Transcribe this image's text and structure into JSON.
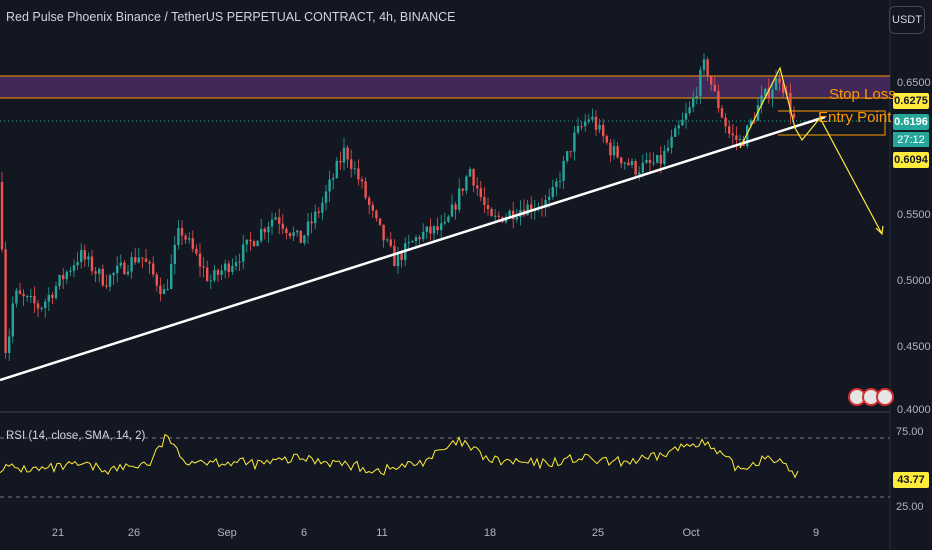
{
  "header": {
    "title": "Red Pulse Phoenix Binance / TetherUS PERPETUAL CONTRACT, 4h, BINANCE",
    "currency_button": "USDT"
  },
  "price_scale": {
    "ticks": [
      "0.6500",
      "0.5500",
      "0.5000",
      "0.4500",
      "0.4000"
    ],
    "stop_loss_tag": "0.6275",
    "current_price_tag": "0.6196",
    "countdown": "27:12",
    "entry_tag": "0.6094"
  },
  "annotations": {
    "stop_loss": "Stop Loss",
    "entry_point": "Entry Point"
  },
  "rsi": {
    "label": "RSI (14, close, SMA, 14, 2)",
    "value_tag": "43.77",
    "upper_band": "75.00",
    "lower_band": "25.00"
  },
  "time_axis": {
    "ticks": [
      "21",
      "26",
      "Sep",
      "6",
      "11",
      "18",
      "25",
      "Oct",
      "9"
    ]
  },
  "colors": {
    "background": "#131722",
    "up": "#26a69a",
    "down": "#ef5350",
    "zone": "#4a2b63",
    "stop_line": "#ff9800",
    "trendline": "#ffffff",
    "rsi_line": "#ffeb3b",
    "projection": "#ffeb3b"
  },
  "chart_data": {
    "type": "candlestick",
    "timeframe": "4h",
    "y_axis": {
      "min": 0.39,
      "max": 0.68
    },
    "anchors": [
      [
        0,
        0.575
      ],
      [
        6,
        0.44
      ],
      [
        14,
        0.49
      ],
      [
        40,
        0.48
      ],
      [
        80,
        0.52
      ],
      [
        105,
        0.5
      ],
      [
        140,
        0.52
      ],
      [
        165,
        0.49
      ],
      [
        180,
        0.54
      ],
      [
        210,
        0.5
      ],
      [
        240,
        0.52
      ],
      [
        275,
        0.55
      ],
      [
        300,
        0.53
      ],
      [
        320,
        0.555
      ],
      [
        345,
        0.6
      ],
      [
        360,
        0.575
      ],
      [
        375,
        0.545
      ],
      [
        395,
        0.515
      ],
      [
        420,
        0.535
      ],
      [
        445,
        0.54
      ],
      [
        470,
        0.585
      ],
      [
        490,
        0.545
      ],
      [
        520,
        0.555
      ],
      [
        550,
        0.56
      ],
      [
        575,
        0.61
      ],
      [
        590,
        0.625
      ],
      [
        610,
        0.6
      ],
      [
        635,
        0.585
      ],
      [
        660,
        0.59
      ],
      [
        690,
        0.63
      ],
      [
        705,
        0.665
      ],
      [
        715,
        0.64
      ],
      [
        730,
        0.61
      ],
      [
        742,
        0.605
      ],
      [
        760,
        0.635
      ],
      [
        780,
        0.655
      ],
      [
        795,
        0.62
      ]
    ],
    "rsi_anchors": [
      [
        0,
        50
      ],
      [
        40,
        48
      ],
      [
        80,
        52
      ],
      [
        110,
        48
      ],
      [
        150,
        54
      ],
      [
        168,
        78
      ],
      [
        180,
        57
      ],
      [
        220,
        55
      ],
      [
        260,
        53
      ],
      [
        300,
        58
      ],
      [
        330,
        55
      ],
      [
        380,
        47
      ],
      [
        420,
        54
      ],
      [
        460,
        72
      ],
      [
        490,
        56
      ],
      [
        540,
        53
      ],
      [
        580,
        58
      ],
      [
        610,
        54
      ],
      [
        650,
        57
      ],
      [
        700,
        73
      ],
      [
        740,
        48
      ],
      [
        770,
        61
      ],
      [
        785,
        50
      ],
      [
        798,
        44
      ]
    ],
    "rsi_range": [
      0,
      100
    ]
  }
}
